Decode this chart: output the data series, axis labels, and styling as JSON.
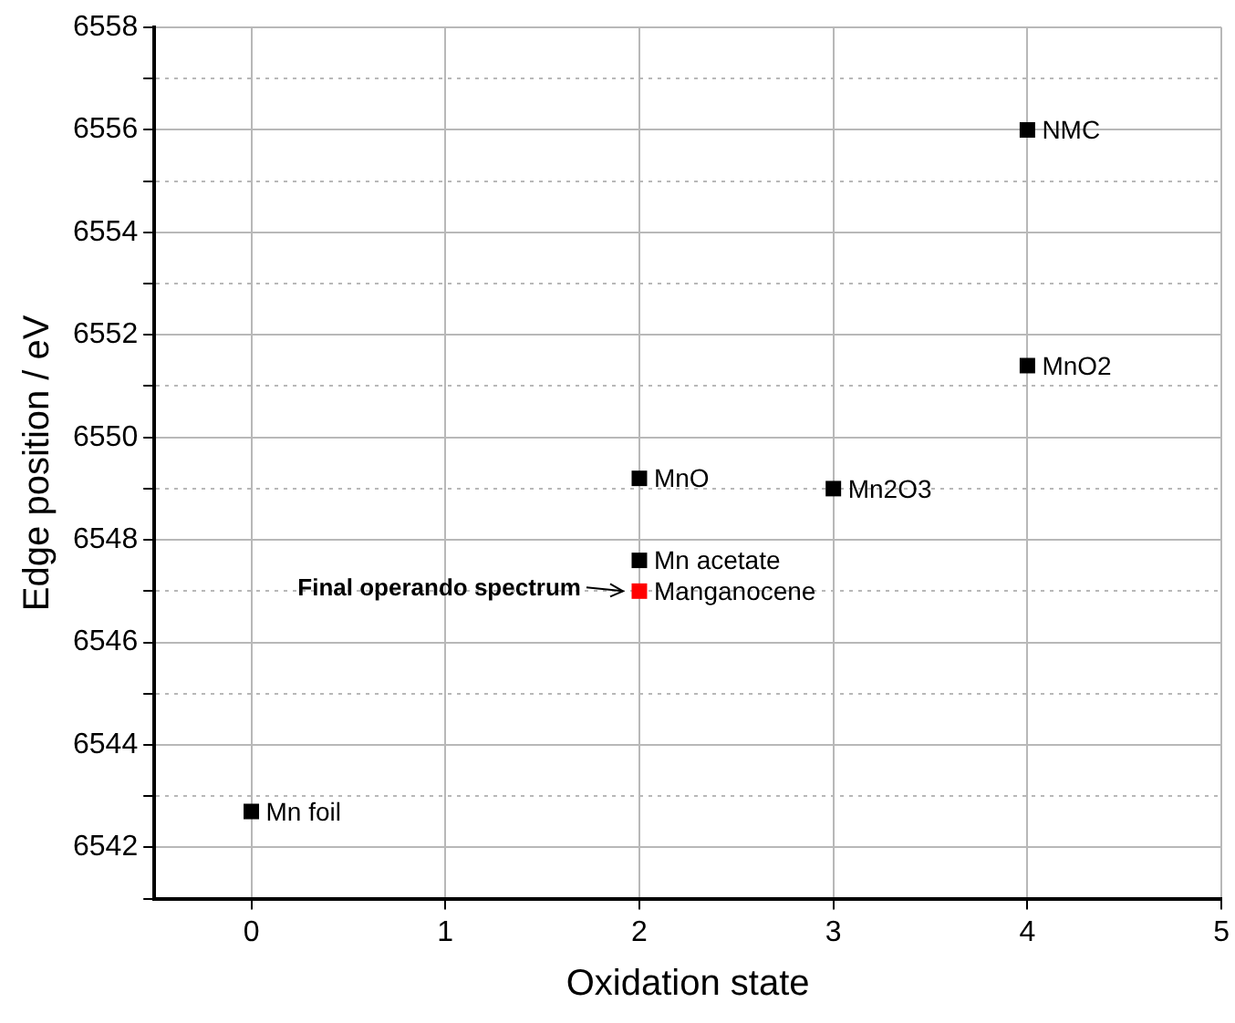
{
  "chart_data": {
    "type": "scatter",
    "xlabel": "Oxidation state",
    "ylabel": "Edge position / eV",
    "xlim": [
      -0.5,
      5
    ],
    "xticks": [
      0,
      1,
      2,
      3,
      4,
      5
    ],
    "ylim": [
      6541,
      6558
    ],
    "yticks": [
      {
        "value": 6541,
        "label": null
      },
      6542,
      {
        "value": 6543,
        "label": null
      },
      6544,
      {
        "value": 6545,
        "label": null
      },
      6546,
      {
        "value": 6547,
        "label": null
      },
      6548,
      {
        "value": 6549,
        "label": null
      },
      6550,
      {
        "value": 6551,
        "label": null
      },
      6552,
      {
        "value": 6553,
        "label": null
      },
      6554,
      {
        "value": 6555,
        "label": null
      },
      6556,
      {
        "value": 6557,
        "label": null
      },
      6558
    ],
    "series": [
      {
        "x": [
          0,
          2,
          2,
          2,
          3,
          4,
          4
        ],
        "values": [
          6542.7,
          6549.2,
          6547.6,
          6547.0,
          6549.0,
          6556.0,
          6551.4
        ],
        "colors": [
          "#000000",
          "#000000",
          "#000000",
          "#ff0000",
          "#000000",
          "#000000",
          "#000000"
        ]
      }
    ],
    "annotations": [
      {
        "text": "Mn foil",
        "x": 0,
        "y": 6542.7
      },
      {
        "text": "MnO",
        "x": 2,
        "y": 6549.2
      },
      {
        "text": "Mn acetate",
        "x": 2,
        "y": 6547.6
      },
      {
        "text": "Manganocene",
        "x": 2,
        "y": 6547.0
      },
      {
        "text": "Mn2O3",
        "x": 3,
        "y": 6549.0
      },
      {
        "text": "NMC",
        "x": 4,
        "y": 6556.0
      },
      {
        "text": "MnO2",
        "x": 4,
        "y": 6551.4
      },
      {
        "text": "Final operando spectrum",
        "x": 2,
        "y": 6547.0
      }
    ],
    "marker": "square",
    "grid": true,
    "legend": false
  }
}
